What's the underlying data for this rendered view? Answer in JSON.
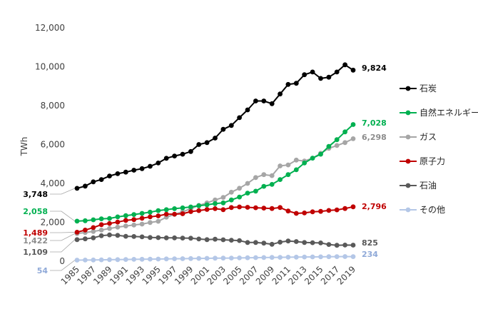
{
  "chart_data": {
    "type": "line",
    "ylabel": "TWh",
    "ylim": [
      0,
      12000
    ],
    "y_ticks": [
      "12,000",
      "10,000",
      "8,000",
      "6,000",
      "4,000",
      "2,000",
      "0"
    ],
    "y_tick_values": [
      12000,
      10000,
      8000,
      6000,
      4000,
      2000,
      0
    ],
    "x": [
      1985,
      1986,
      1987,
      1988,
      1989,
      1990,
      1991,
      1992,
      1993,
      1994,
      1995,
      1996,
      1997,
      1998,
      1999,
      2000,
      2001,
      2002,
      2003,
      2004,
      2005,
      2006,
      2007,
      2008,
      2009,
      2010,
      2011,
      2012,
      2013,
      2014,
      2015,
      2016,
      2017,
      2018,
      2019
    ],
    "x_tick_labels": [
      "1985",
      "1987",
      "1989",
      "1991",
      "1993",
      "1995",
      "1997",
      "1999",
      "2001",
      "2003",
      "2005",
      "2007",
      "2009",
      "2011",
      "2013",
      "2015",
      "2017",
      "2019"
    ],
    "grid": false,
    "legend_position": "right",
    "series": [
      {
        "name": "石炭",
        "color": "#000000",
        "start_label": "3,748",
        "end_label": "9,824",
        "values": [
          3748,
          3860,
          4080,
          4200,
          4380,
          4500,
          4580,
          4680,
          4760,
          4880,
          5050,
          5290,
          5410,
          5500,
          5640,
          6000,
          6100,
          6330,
          6780,
          6980,
          7380,
          7780,
          8240,
          8240,
          8100,
          8600,
          9090,
          9150,
          9590,
          9730,
          9400,
          9460,
          9730,
          10100,
          9824
        ]
      },
      {
        "name": "自然エネルギー",
        "color": "#00b050",
        "start_label": "2,058",
        "end_label": "7,028",
        "values": [
          2058,
          2080,
          2130,
          2180,
          2200,
          2280,
          2340,
          2400,
          2460,
          2520,
          2600,
          2650,
          2700,
          2740,
          2790,
          2850,
          2900,
          2960,
          3000,
          3150,
          3300,
          3500,
          3600,
          3850,
          3950,
          4200,
          4450,
          4700,
          5050,
          5300,
          5500,
          5900,
          6250,
          6650,
          7028
        ]
      },
      {
        "name": "ガス",
        "color": "#a6a6a6",
        "start_label": "1,422",
        "end_label": "6,298",
        "values": [
          1422,
          1470,
          1530,
          1600,
          1680,
          1750,
          1810,
          1860,
          1910,
          1990,
          2050,
          2260,
          2410,
          2540,
          2700,
          2870,
          3000,
          3150,
          3280,
          3550,
          3750,
          4000,
          4300,
          4450,
          4400,
          4900,
          4950,
          5200,
          5150,
          5300,
          5550,
          5800,
          5950,
          6100,
          6298
        ]
      },
      {
        "name": "原子力",
        "color": "#c00000",
        "start_label": "1,489",
        "end_label": "2,796",
        "values": [
          1489,
          1600,
          1730,
          1880,
          1940,
          2010,
          2100,
          2140,
          2210,
          2280,
          2330,
          2420,
          2420,
          2440,
          2550,
          2600,
          2660,
          2700,
          2650,
          2760,
          2790,
          2770,
          2750,
          2730,
          2710,
          2760,
          2580,
          2460,
          2480,
          2540,
          2560,
          2610,
          2640,
          2710,
          2796
        ]
      },
      {
        "name": "石油",
        "color": "#595959",
        "start_label": "1,109",
        "end_label": "825",
        "values": [
          1109,
          1150,
          1200,
          1310,
          1350,
          1330,
          1280,
          1270,
          1250,
          1220,
          1210,
          1200,
          1200,
          1190,
          1180,
          1140,
          1110,
          1130,
          1100,
          1080,
          1060,
          960,
          960,
          930,
          870,
          980,
          1040,
          1010,
          960,
          950,
          940,
          860,
          820,
          830,
          825
        ]
      },
      {
        "name": "その他",
        "color": "#b4c7e7",
        "start_label": "54",
        "end_label": "234",
        "values": [
          54,
          60,
          64,
          70,
          76,
          82,
          88,
          95,
          100,
          105,
          110,
          118,
          123,
          130,
          136,
          143,
          148,
          153,
          158,
          162,
          168,
          175,
          182,
          188,
          195,
          200,
          205,
          210,
          215,
          220,
          225,
          230,
          236,
          240,
          234
        ]
      }
    ]
  }
}
